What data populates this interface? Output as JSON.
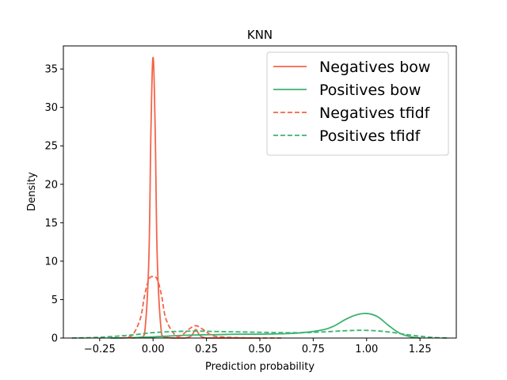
{
  "chart_data": {
    "type": "line",
    "title": "KNN",
    "xlabel": "Prediction probability",
    "ylabel": "Density",
    "xlim": [
      -0.42,
      1.42
    ],
    "ylim": [
      0,
      38
    ],
    "xticks": [
      -0.25,
      0.0,
      0.25,
      0.5,
      0.75,
      1.0,
      1.25
    ],
    "xtick_labels": [
      "−0.25",
      "0.00",
      "0.25",
      "0.50",
      "0.75",
      "1.00",
      "1.25"
    ],
    "yticks": [
      0,
      5,
      10,
      15,
      20,
      25,
      30,
      35
    ],
    "ytick_labels": [
      "0",
      "5",
      "10",
      "15",
      "20",
      "25",
      "30",
      "35"
    ],
    "grid": false,
    "legend_position": "top-right",
    "series": [
      {
        "name": "Negatives bow",
        "color": "#f4644a",
        "dash": "solid",
        "x": [
          -0.1,
          -0.06,
          -0.04,
          -0.02,
          -0.01,
          0.0,
          0.01,
          0.02,
          0.04,
          0.06,
          0.1,
          0.15,
          0.18,
          0.2,
          0.22,
          0.25,
          0.3,
          0.4,
          0.5
        ],
        "y": [
          0,
          0.1,
          0.5,
          10,
          27,
          36.5,
          27,
          10,
          0.5,
          0.1,
          0,
          0,
          0.3,
          1.1,
          0.3,
          0,
          0,
          0,
          0
        ]
      },
      {
        "name": "Positives bow",
        "color": "#3cb371",
        "dash": "solid",
        "x": [
          -0.2,
          -0.1,
          0.0,
          0.1,
          0.2,
          0.3,
          0.4,
          0.5,
          0.6,
          0.7,
          0.8,
          0.85,
          0.9,
          0.95,
          1.0,
          1.05,
          1.1,
          1.15,
          1.2,
          1.25
        ],
        "y": [
          0,
          0.05,
          0.15,
          0.3,
          0.4,
          0.45,
          0.5,
          0.5,
          0.55,
          0.7,
          1.1,
          1.6,
          2.4,
          3.0,
          3.2,
          2.8,
          1.7,
          0.7,
          0.2,
          0
        ]
      },
      {
        "name": "Negatives tfidf",
        "color": "#f4644a",
        "dash": "dashed",
        "x": [
          -0.15,
          -0.1,
          -0.06,
          -0.04,
          -0.02,
          0.0,
          0.02,
          0.04,
          0.06,
          0.1,
          0.13,
          0.17,
          0.2,
          0.23,
          0.27,
          0.3,
          0.35,
          0.4,
          0.5,
          0.6
        ],
        "y": [
          0,
          0.3,
          2.5,
          5.5,
          7.6,
          8.0,
          7.6,
          5.5,
          2.5,
          0.5,
          0.3,
          1.2,
          1.6,
          1.2,
          0.4,
          0.2,
          0.1,
          0.05,
          0,
          0
        ]
      },
      {
        "name": "Positives tfidf",
        "color": "#3cb371",
        "dash": "dashed",
        "x": [
          -0.38,
          -0.25,
          -0.1,
          0.0,
          0.1,
          0.2,
          0.3,
          0.4,
          0.5,
          0.6,
          0.7,
          0.8,
          0.9,
          1.0,
          1.1,
          1.2,
          1.3,
          1.38
        ],
        "y": [
          0,
          0.1,
          0.4,
          0.7,
          0.85,
          0.9,
          0.85,
          0.8,
          0.75,
          0.7,
          0.7,
          0.8,
          0.95,
          1.0,
          0.8,
          0.4,
          0.1,
          0
        ]
      }
    ]
  }
}
